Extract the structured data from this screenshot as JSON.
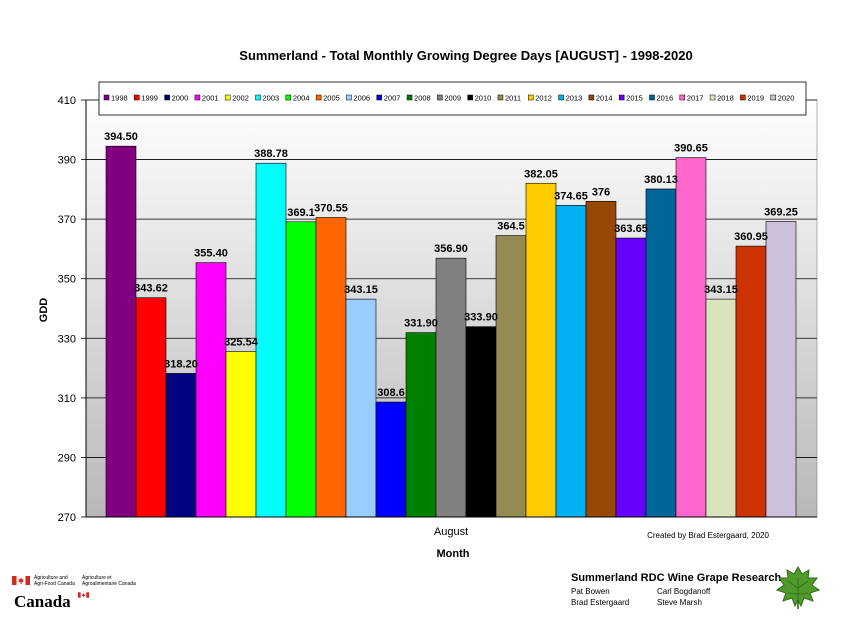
{
  "chart_data": {
    "type": "bar",
    "title": "Summerland - Total Monthly Growing Degree Days [AUGUST] - 1998-2020",
    "xlabel": "Month",
    "ylabel": "GDD",
    "categories": [
      "August"
    ],
    "ylim": [
      270,
      410
    ],
    "yticks": [
      270,
      290,
      310,
      330,
      350,
      370,
      390,
      410
    ],
    "grid": true,
    "legend_position": "top",
    "series": [
      {
        "name": "1998",
        "value": 394.5,
        "label": "394.50",
        "color": "#800080"
      },
      {
        "name": "1999",
        "value": 343.62,
        "label": "343.62",
        "color": "#ff0000"
      },
      {
        "name": "2000",
        "value": 318.2,
        "label": "318.20",
        "color": "#000080"
      },
      {
        "name": "2001",
        "value": 355.4,
        "label": "355.40",
        "color": "#ff00ff"
      },
      {
        "name": "2002",
        "value": 325.54,
        "label": "325.54",
        "color": "#ffff00"
      },
      {
        "name": "2003",
        "value": 388.78,
        "label": "388.78",
        "color": "#00ffff"
      },
      {
        "name": "2004",
        "value": 369.1,
        "label": "369.1",
        "color": "#00ff00"
      },
      {
        "name": "2005",
        "value": 370.55,
        "label": "370.55",
        "color": "#ff6600"
      },
      {
        "name": "2006",
        "value": 343.15,
        "label": "343.15",
        "color": "#99ccff"
      },
      {
        "name": "2007",
        "value": 308.6,
        "label": "308.6",
        "color": "#0000ff"
      },
      {
        "name": "2008",
        "value": 331.9,
        "label": "331.90",
        "color": "#008000"
      },
      {
        "name": "2009",
        "value": 356.9,
        "label": "356.90",
        "color": "#808080"
      },
      {
        "name": "2010",
        "value": 333.9,
        "label": "333.90",
        "color": "#000000"
      },
      {
        "name": "2011",
        "value": 364.5,
        "label": "364.5",
        "color": "#948a54"
      },
      {
        "name": "2012",
        "value": 382.05,
        "label": "382.05",
        "color": "#ffcc00"
      },
      {
        "name": "2013",
        "value": 374.65,
        "label": "374.65",
        "color": "#00b0f0"
      },
      {
        "name": "2014",
        "value": 376,
        "label": "376",
        "color": "#974706"
      },
      {
        "name": "2015",
        "value": 363.65,
        "label": "363.65",
        "color": "#6600ff"
      },
      {
        "name": "2016",
        "value": 380.13,
        "label": "380.13",
        "color": "#006699"
      },
      {
        "name": "2017",
        "value": 390.65,
        "label": "390.65",
        "color": "#ff66cc"
      },
      {
        "name": "2018",
        "value": 343.15,
        "label": "343.15",
        "color": "#d8e4bc"
      },
      {
        "name": "2019",
        "value": 360.95,
        "label": "360.95",
        "color": "#cc3300"
      },
      {
        "name": "2020",
        "value": 369.25,
        "label": "369.25",
        "color": "#ccc0da"
      }
    ],
    "annotation": "Created by Brad Estergaard, 2020"
  },
  "footer": {
    "gov_en_line1": "Agriculture and",
    "gov_en_line2": "Agri-Food Canada",
    "gov_fr_line1": "Agriculture et",
    "gov_fr_line2": "Agroalimentaire Canada",
    "wordmark": "Canada",
    "research_title": "Summerland RDC Wine Grape Research",
    "names": [
      "Pat Bowen",
      "Carl Bogdanoff",
      "Brad Estergaard",
      "Steve Marsh"
    ]
  }
}
